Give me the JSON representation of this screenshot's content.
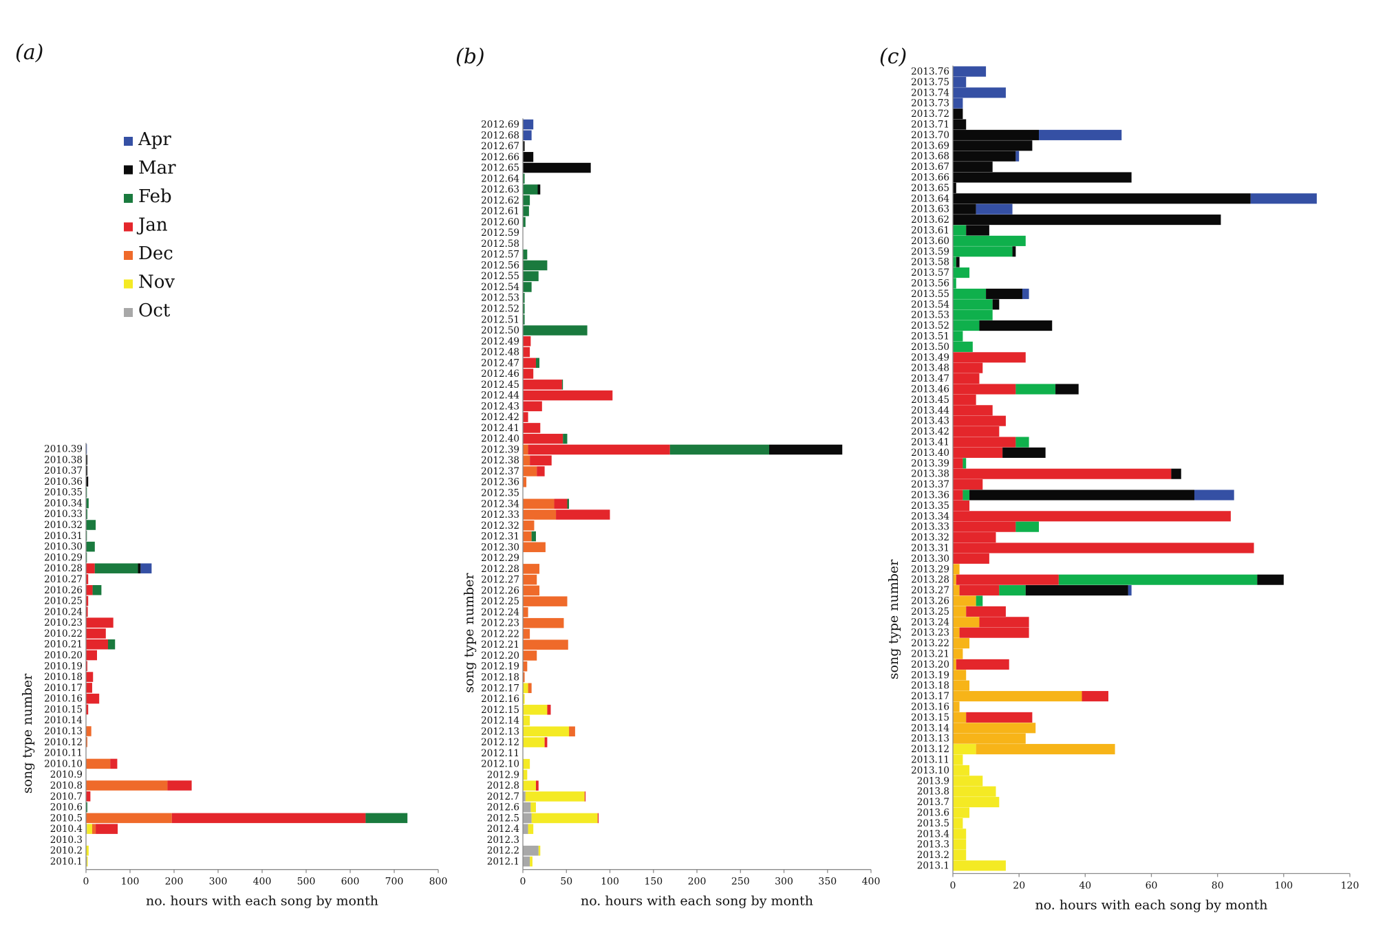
{
  "colors": {
    "Apr": "#3550a4",
    "Mar": "#0a0a0a",
    "Feb_a": "#1a7a3e",
    "Feb_c": "#0fb04c",
    "Jan": "#e4262b",
    "Dec": "#ef6a2a",
    "Dec_c": "#f7b418",
    "Nov": "#f4ea24",
    "Oct": "#a8a8a8"
  },
  "legend": {
    "items": [
      {
        "label": "Apr",
        "color": "#3550a4"
      },
      {
        "label": "Mar",
        "color": "#0a0a0a"
      },
      {
        "label": "Feb",
        "color": "#1a7a3e"
      },
      {
        "label": "Jan",
        "color": "#e4262b"
      },
      {
        "label": "Dec",
        "color": "#ef6a2a"
      },
      {
        "label": "Nov",
        "color": "#f4ea24"
      },
      {
        "label": "Oct",
        "color": "#a8a8a8"
      }
    ]
  },
  "chart_data": [
    {
      "panel": "(a)",
      "type": "bar",
      "orientation": "horizontal-stacked",
      "xlabel": "no. hours with each song by month",
      "ylabel": "song type number",
      "xlim": [
        0,
        800
      ],
      "xticks": [
        0,
        100,
        200,
        300,
        400,
        500,
        600,
        700,
        800
      ],
      "stack_order": [
        "Oct",
        "Nov",
        "Dec",
        "Jan",
        "Feb",
        "Mar",
        "Apr"
      ],
      "categories": [
        "2010.1",
        "2010.2",
        "2010.3",
        "2010.4",
        "2010.5",
        "2010.6",
        "2010.7",
        "2010.8",
        "2010.9",
        "2010.10",
        "2010.11",
        "2010.12",
        "2010.13",
        "2010.14",
        "2010.15",
        "2010.16",
        "2010.17",
        "2010.18",
        "2010.19",
        "2010.20",
        "2010.21",
        "2010.22",
        "2010.23",
        "2010.24",
        "2010.25",
        "2010.26",
        "2010.27",
        "2010.28",
        "2010.29",
        "2010.30",
        "2010.31",
        "2010.32",
        "2010.33",
        "2010.34",
        "2010.35",
        "2010.36",
        "2010.37",
        "2010.38",
        "2010.39"
      ],
      "values": [
        {
          "Oct": 2,
          "Nov": 2
        },
        {
          "Nov": 6
        },
        {},
        {
          "Oct": 2,
          "Nov": 12,
          "Dec": 8,
          "Jan": 50
        },
        {
          "Dec": 195,
          "Jan": 440,
          "Feb": 95
        },
        {
          "Feb": 3
        },
        {
          "Jan": 10
        },
        {
          "Dec": 185,
          "Jan": 55
        },
        {},
        {
          "Dec": 55,
          "Jan": 16
        },
        {},
        {
          "Dec": 3
        },
        {
          "Dec": 12
        },
        {},
        {
          "Jan": 5
        },
        {
          "Jan": 30
        },
        {
          "Jan": 14
        },
        {
          "Jan": 16
        },
        {
          "Jan": 3
        },
        {
          "Jan": 25
        },
        {
          "Jan": 50,
          "Feb": 16
        },
        {
          "Jan": 45
        },
        {
          "Jan": 62
        },
        {
          "Jan": 4
        },
        {
          "Jan": 5
        },
        {
          "Jan": 15,
          "Feb": 20
        },
        {
          "Jan": 5
        },
        {
          "Jan": 20,
          "Feb": 98,
          "Mar": 6,
          "Apr": 25
        },
        {
          "Feb": 2
        },
        {
          "Feb": 20
        },
        {
          "Feb": 2
        },
        {
          "Feb": 22
        },
        {
          "Feb": 3
        },
        {
          "Feb": 6
        },
        {
          "Feb": 2
        },
        {
          "Mar": 5
        },
        {
          "Mar": 3
        },
        {
          "Mar": 3
        },
        {
          "Apr": 2
        }
      ]
    },
    {
      "panel": "(b)",
      "type": "bar",
      "orientation": "horizontal-stacked",
      "xlabel": "no. hours with each song by month",
      "ylabel": "song type number",
      "xlim": [
        0,
        400
      ],
      "xticks": [
        0,
        50,
        100,
        150,
        200,
        250,
        300,
        350,
        400
      ],
      "stack_order": [
        "Oct",
        "Nov",
        "Dec",
        "Jan",
        "Feb",
        "Mar",
        "Apr"
      ],
      "categories": [
        "2012.1",
        "2012.2",
        "2012.3",
        "2012.4",
        "2012.5",
        "2012.6",
        "2012.7",
        "2012.8",
        "2012.9",
        "2012.10",
        "2012.11",
        "2012.12",
        "2012.13",
        "2012.14",
        "2012.15",
        "2012.16",
        "2012.17",
        "2012.18",
        "2012.19",
        "2012.20",
        "2012.21",
        "2012.22",
        "2012.23",
        "2012.24",
        "2012.25",
        "2012.26",
        "2012.27",
        "2012.28",
        "2012.29",
        "2012.30",
        "2012.31",
        "2012.32",
        "2012.33",
        "2012.34",
        "2012.35",
        "2012.36",
        "2012.37",
        "2012.38",
        "2012.39",
        "2012.40",
        "2012.41",
        "2012.42",
        "2012.43",
        "2012.44",
        "2012.45",
        "2012.46",
        "2012.47",
        "2012.48",
        "2012.49",
        "2012.50",
        "2012.51",
        "2012.52",
        "2012.53",
        "2012.54",
        "2012.55",
        "2012.56",
        "2012.57",
        "2012.58",
        "2012.59",
        "2012.60",
        "2012.61",
        "2012.62",
        "2012.63",
        "2012.64",
        "2012.65",
        "2012.66",
        "2012.67",
        "2012.68",
        "2012.69"
      ],
      "values": [
        {
          "Oct": 8,
          "Nov": 3
        },
        {
          "Oct": 18,
          "Nov": 2
        },
        {},
        {
          "Oct": 6,
          "Nov": 6
        },
        {
          "Oct": 10,
          "Nov": 76,
          "Jan": 1
        },
        {
          "Oct": 9,
          "Nov": 6
        },
        {
          "Oct": 3,
          "Nov": 68,
          "Jan": 1
        },
        {
          "Nov": 15,
          "Jan": 3
        },
        {
          "Nov": 5
        },
        {
          "Nov": 8
        },
        {},
        {
          "Nov": 25,
          "Jan": 3
        },
        {
          "Nov": 53,
          "Dec": 7
        },
        {
          "Nov": 8
        },
        {
          "Nov": 28,
          "Jan": 4
        },
        {
          "Nov": 2
        },
        {
          "Nov": 6,
          "Dec": 4
        },
        {
          "Dec": 2
        },
        {
          "Dec": 5
        },
        {
          "Dec": 16
        },
        {
          "Dec": 52
        },
        {
          "Dec": 8
        },
        {
          "Dec": 47
        },
        {
          "Dec": 6
        },
        {
          "Dec": 51
        },
        {
          "Dec": 19
        },
        {
          "Dec": 16
        },
        {
          "Dec": 19
        },
        {},
        {
          "Dec": 26
        },
        {
          "Dec": 10,
          "Feb": 5
        },
        {
          "Dec": 13
        },
        {
          "Dec": 38,
          "Jan": 62
        },
        {
          "Dec": 36,
          "Jan": 15,
          "Feb": 2
        },
        {},
        {
          "Dec": 4
        },
        {
          "Dec": 16,
          "Jan": 9
        },
        {
          "Dec": 8,
          "Jan": 25
        },
        {
          "Dec": 6,
          "Jan": 163,
          "Feb": 114,
          "Mar": 84
        },
        {
          "Jan": 46,
          "Feb": 5
        },
        {
          "Jan": 20
        },
        {
          "Jan": 6
        },
        {
          "Jan": 22
        },
        {
          "Jan": 103
        },
        {
          "Jan": 45,
          "Feb": 1
        },
        {
          "Jan": 12
        },
        {
          "Jan": 15,
          "Feb": 4
        },
        {
          "Jan": 8
        },
        {
          "Jan": 9
        },
        {
          "Feb": 74
        },
        {
          "Feb": 2
        },
        {
          "Feb": 2
        },
        {
          "Feb": 2
        },
        {
          "Feb": 10
        },
        {
          "Feb": 18
        },
        {
          "Feb": 28
        },
        {
          "Feb": 5
        },
        {},
        {},
        {
          "Feb": 3
        },
        {
          "Feb": 7
        },
        {
          "Feb": 8
        },
        {
          "Feb": 17,
          "Mar": 3
        },
        {
          "Feb": 2
        },
        {
          "Mar": 78
        },
        {
          "Mar": 12
        },
        {
          "Mar": 2
        },
        {
          "Apr": 10
        },
        {
          "Apr": 12
        }
      ]
    },
    {
      "panel": "(c)",
      "type": "bar",
      "orientation": "horizontal-stacked",
      "xlabel": "no. hours with each song by month",
      "ylabel": "song type number",
      "xlim": [
        0,
        120
      ],
      "xticks": [
        0,
        20,
        40,
        60,
        80,
        100,
        120
      ],
      "stack_order": [
        "Nov",
        "Dec",
        "Jan",
        "Feb",
        "Mar",
        "Apr"
      ],
      "categories": [
        "2013.1",
        "2013.2",
        "2013.3",
        "2013.4",
        "2013.5",
        "2013.6",
        "2013.7",
        "2013.8",
        "2013.9",
        "2013.10",
        "2013.11",
        "2013.12",
        "2013.13",
        "2013.14",
        "2013.15",
        "2013.16",
        "2013.17",
        "2013.18",
        "2013.19",
        "2013.20",
        "2013.21",
        "2013.22",
        "2013.23",
        "2013.24",
        "2013.25",
        "2013.26",
        "2013.27",
        "2013.28",
        "2013.29",
        "2013.30",
        "2013.31",
        "2013.32",
        "2013.33",
        "2013.34",
        "2013.35",
        "2013.36",
        "2013.37",
        "2013.38",
        "2013.39",
        "2013.40",
        "2013.41",
        "2013.42",
        "2013.43",
        "2013.44",
        "2013.45",
        "2013.46",
        "2013.47",
        "2013.48",
        "2013.49",
        "2013.50",
        "2013.51",
        "2013.52",
        "2013.53",
        "2013.54",
        "2013.55",
        "2013.56",
        "2013.57",
        "2013.58",
        "2013.59",
        "2013.60",
        "2013.61",
        "2013.62",
        "2013.63",
        "2013.64",
        "2013.65",
        "2013.66",
        "2013.67",
        "2013.68",
        "2013.69",
        "2013.70",
        "2013.71",
        "2013.72",
        "2013.73",
        "2013.74",
        "2013.75",
        "2013.76"
      ],
      "values": [
        {
          "Nov": 16
        },
        {
          "Nov": 4
        },
        {
          "Nov": 4
        },
        {
          "Nov": 4
        },
        {
          "Nov": 3
        },
        {
          "Nov": 5
        },
        {
          "Nov": 14
        },
        {
          "Nov": 13
        },
        {
          "Nov": 9
        },
        {
          "Nov": 5
        },
        {
          "Nov": 3
        },
        {
          "Nov": 7,
          "Dec": 42
        },
        {
          "Dec": 22
        },
        {
          "Dec": 25
        },
        {
          "Dec": 4,
          "Jan": 20
        },
        {
          "Dec": 2
        },
        {
          "Dec": 39,
          "Jan": 8
        },
        {
          "Dec": 5
        },
        {
          "Dec": 4
        },
        {
          "Dec": 1,
          "Jan": 16
        },
        {
          "Dec": 3
        },
        {
          "Dec": 5
        },
        {
          "Dec": 2,
          "Jan": 21
        },
        {
          "Dec": 8,
          "Jan": 15
        },
        {
          "Dec": 4,
          "Jan": 12
        },
        {
          "Dec": 7,
          "Feb": 2
        },
        {
          "Dec": 2,
          "Jan": 12,
          "Feb": 8,
          "Mar": 31,
          "Apr": 1
        },
        {
          "Dec": 1,
          "Jan": 31,
          "Feb": 60,
          "Mar": 8
        },
        {
          "Dec": 2
        },
        {
          "Jan": 11
        },
        {
          "Jan": 91
        },
        {
          "Jan": 13
        },
        {
          "Jan": 19,
          "Feb": 7
        },
        {
          "Jan": 84
        },
        {
          "Jan": 5
        },
        {
          "Jan": 3,
          "Feb": 2,
          "Mar": 68,
          "Apr": 12
        },
        {
          "Jan": 9
        },
        {
          "Jan": 66,
          "Mar": 3
        },
        {
          "Jan": 3,
          "Feb": 1
        },
        {
          "Jan": 15,
          "Mar": 13
        },
        {
          "Jan": 19,
          "Feb": 4
        },
        {
          "Jan": 14
        },
        {
          "Jan": 16
        },
        {
          "Jan": 12
        },
        {
          "Jan": 7
        },
        {
          "Jan": 19,
          "Feb": 12,
          "Mar": 7
        },
        {
          "Jan": 8
        },
        {
          "Jan": 9
        },
        {
          "Jan": 22
        },
        {
          "Feb": 6
        },
        {
          "Feb": 3
        },
        {
          "Feb": 8,
          "Mar": 22
        },
        {
          "Feb": 12
        },
        {
          "Feb": 12,
          "Mar": 2
        },
        {
          "Feb": 10,
          "Mar": 11,
          "Apr": 2
        },
        {
          "Feb": 1
        },
        {
          "Feb": 5
        },
        {
          "Feb": 1,
          "Mar": 1
        },
        {
          "Feb": 18,
          "Mar": 1
        },
        {
          "Feb": 22
        },
        {
          "Feb": 4,
          "Mar": 7
        },
        {
          "Mar": 81
        },
        {
          "Mar": 7,
          "Apr": 11
        },
        {
          "Mar": 90,
          "Apr": 20
        },
        {
          "Mar": 1
        },
        {
          "Mar": 54
        },
        {
          "Mar": 12
        },
        {
          "Mar": 19,
          "Apr": 1
        },
        {
          "Mar": 24
        },
        {
          "Mar": 26,
          "Apr": 25
        },
        {
          "Mar": 4
        },
        {
          "Mar": 3
        },
        {
          "Apr": 3
        },
        {
          "Apr": 16
        },
        {
          "Apr": 4
        },
        {
          "Apr": 10
        }
      ]
    }
  ]
}
